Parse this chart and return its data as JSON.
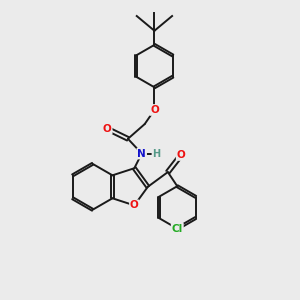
{
  "bg_color": "#ebebeb",
  "bond_color": "#1a1a1a",
  "bond_width": 1.4,
  "dbo": 0.055,
  "atom_colors": {
    "O": "#ee1111",
    "N": "#1111cc",
    "Cl": "#22aa22",
    "H": "#559988"
  },
  "font_size": 7.5,
  "fig_size": [
    3.0,
    3.0
  ],
  "dpi": 100
}
